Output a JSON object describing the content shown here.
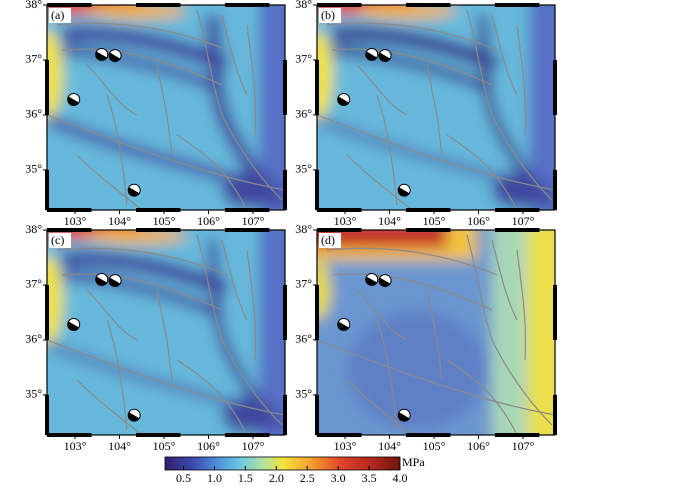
{
  "panels": [
    {
      "label": "(a)"
    },
    {
      "label": "(b)"
    },
    {
      "label": "(c)"
    },
    {
      "label": "(d)"
    }
  ],
  "map": {
    "lonlim": [
      102.37,
      107.72
    ],
    "latlim": [
      34.27,
      38
    ],
    "lon_ticks": [
      {
        "value": 103,
        "label": "103°"
      },
      {
        "value": 104,
        "label": "104°"
      },
      {
        "value": 105,
        "label": "105°"
      },
      {
        "value": 106,
        "label": "106°"
      },
      {
        "value": 107,
        "label": "107°"
      }
    ],
    "lat_ticks": [
      {
        "value": 35,
        "label": "35°"
      },
      {
        "value": 36,
        "label": "36°"
      },
      {
        "value": 37,
        "label": "37°"
      },
      {
        "value": 38,
        "label": "38°"
      }
    ]
  },
  "colorbar": {
    "unit": "MPa",
    "lim": [
      0.2,
      4.0
    ],
    "ticks": [
      0.5,
      {
        "value": 1,
        "label": "1.0"
      },
      1.5,
      {
        "value": 2,
        "label": "2.0"
      },
      2.5,
      {
        "value": 3,
        "label": "3.0"
      },
      3.5,
      {
        "value": 4,
        "label": "4.0"
      }
    ]
  }
}
